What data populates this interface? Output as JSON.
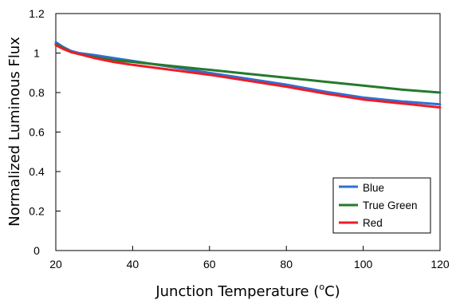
{
  "chart_data": {
    "type": "line",
    "title": "",
    "xlabel": "Junction Temperature (",
    "xlabel_unit": "o",
    "xlabel_tail": "C)",
    "ylabel": "Normalized Luminous Flux",
    "xlim": [
      20,
      120
    ],
    "ylim": [
      0,
      1.2
    ],
    "x_ticks": [
      "20",
      "40",
      "60",
      "80",
      "100",
      "120"
    ],
    "y_ticks": [
      "0",
      "0.2",
      "0.4",
      "0.6",
      "0.8",
      "1",
      "1.2"
    ],
    "grid": false,
    "legend_position": "bottom-right",
    "series": [
      {
        "name": "Blue",
        "color": "#2f6fd6",
        "x": [
          20,
          22,
          24,
          26,
          30,
          35,
          40,
          50,
          60,
          70,
          80,
          90,
          100,
          110,
          120
        ],
        "y": [
          1.055,
          1.03,
          1.01,
          1.0,
          0.99,
          0.975,
          0.96,
          0.93,
          0.9,
          0.87,
          0.84,
          0.805,
          0.775,
          0.755,
          0.74
        ]
      },
      {
        "name": "True Green",
        "color": "#257a2c",
        "x": [
          20,
          22,
          24,
          26,
          30,
          35,
          40,
          50,
          60,
          70,
          80,
          90,
          100,
          110,
          120
        ],
        "y": [
          1.045,
          1.025,
          1.005,
          0.995,
          0.98,
          0.965,
          0.955,
          0.935,
          0.915,
          0.895,
          0.875,
          0.855,
          0.835,
          0.815,
          0.8
        ]
      },
      {
        "name": "Red",
        "color": "#ee1c24",
        "x": [
          20,
          22,
          24,
          26,
          30,
          35,
          40,
          50,
          60,
          70,
          80,
          90,
          100,
          110,
          120
        ],
        "y": [
          1.04,
          1.02,
          1.005,
          0.995,
          0.975,
          0.955,
          0.94,
          0.915,
          0.89,
          0.86,
          0.83,
          0.795,
          0.765,
          0.745,
          0.725
        ]
      }
    ]
  }
}
